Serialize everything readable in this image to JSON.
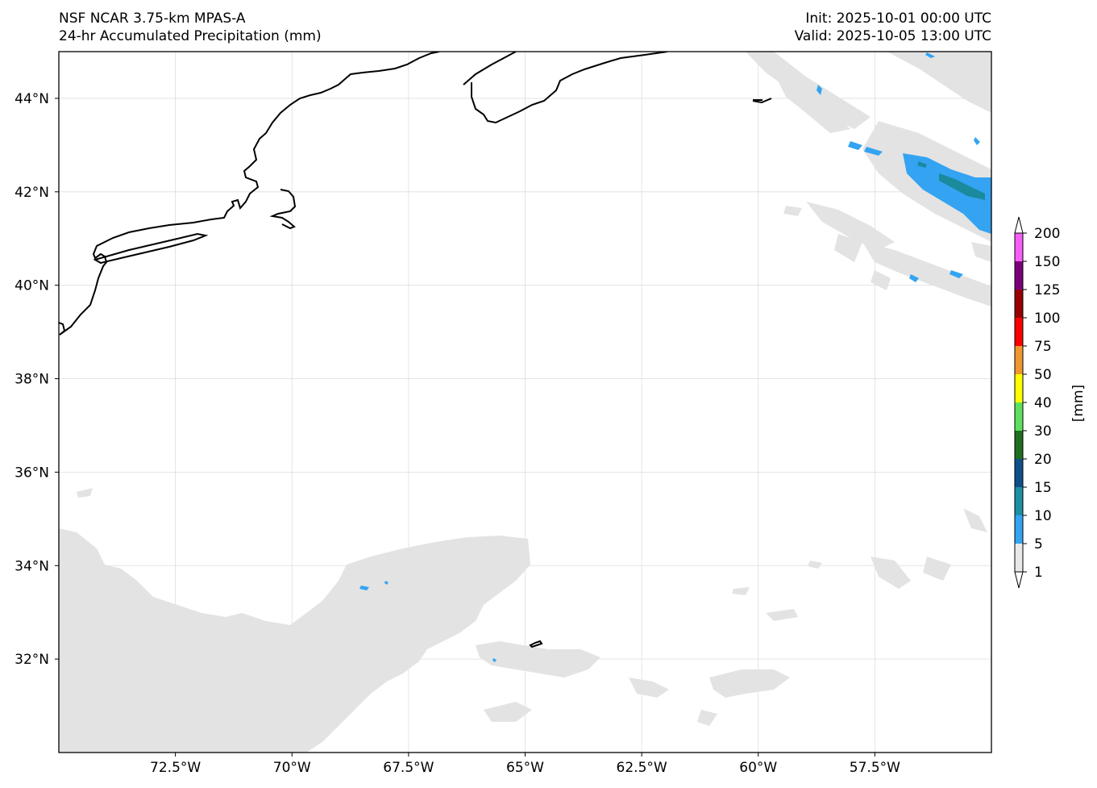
{
  "header": {
    "left_line1": "NSF NCAR 3.75-km MPAS-A",
    "left_line2": "24-hr Accumulated Precipitation (mm)",
    "right_line1": "Init: 2025-10-01 00:00 UTC",
    "right_line2": "Valid: 2025-10-05 13:00 UTC"
  },
  "map": {
    "lon_range": [
      -75.0,
      -55.0
    ],
    "lat_range": [
      30.0,
      45.0
    ],
    "lat_ticks": [
      {
        "value": 44,
        "label": "44°N"
      },
      {
        "value": 42,
        "label": "42°N"
      },
      {
        "value": 40,
        "label": "40°N"
      },
      {
        "value": 38,
        "label": "38°N"
      },
      {
        "value": 36,
        "label": "36°N"
      },
      {
        "value": 34,
        "label": "34°N"
      },
      {
        "value": 32,
        "label": "32°N"
      }
    ],
    "lon_ticks": [
      {
        "value": -72.5,
        "label": "72.5°W"
      },
      {
        "value": -70.0,
        "label": "70°W"
      },
      {
        "value": -67.5,
        "label": "67.5°W"
      },
      {
        "value": -65.0,
        "label": "65°W"
      },
      {
        "value": -62.5,
        "label": "62.5°W"
      },
      {
        "value": -60.0,
        "label": "60°W"
      },
      {
        "value": -57.5,
        "label": "57.5°W"
      }
    ],
    "gridlines": true,
    "light_precip_color": "#e3e3e3",
    "moderate_precip_color": "#33a3f2",
    "heavy_precip_color": "#1a8a9c"
  },
  "colorbar": {
    "unit_label": "[mm]",
    "levels": [
      {
        "label": "1",
        "color": "#e8e8e8"
      },
      {
        "label": "5",
        "color": "#33a3f2"
      },
      {
        "label": "10",
        "color": "#1d8fa6"
      },
      {
        "label": "15",
        "color": "#0f4f8a"
      },
      {
        "label": "20",
        "color": "#1f6f1f"
      },
      {
        "label": "30",
        "color": "#5ee05e"
      },
      {
        "label": "40",
        "color": "#ffff00"
      },
      {
        "label": "50",
        "color": "#f0982e"
      },
      {
        "label": "75",
        "color": "#ff0000"
      },
      {
        "label": "100",
        "color": "#990000"
      },
      {
        "label": "125",
        "color": "#7a007a"
      },
      {
        "label": "150",
        "color": "#f75df7"
      },
      {
        "label": "200",
        "color": ""
      }
    ]
  }
}
